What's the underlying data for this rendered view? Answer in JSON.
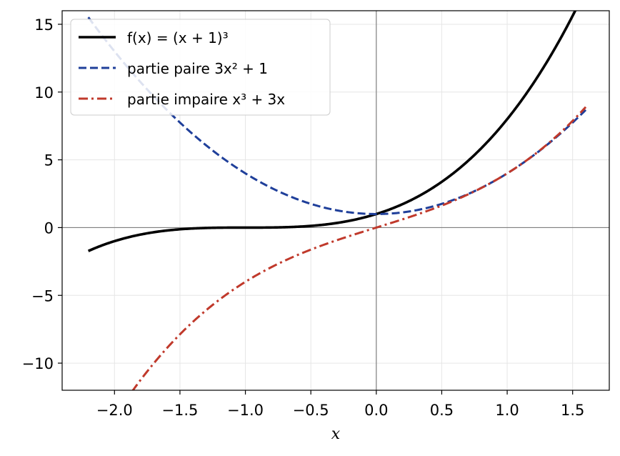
{
  "chart_data": {
    "type": "line",
    "title": "",
    "xlabel": "x",
    "ylabel": "",
    "xlim": [
      -2.4,
      1.78
    ],
    "ylim": [
      -12,
      16
    ],
    "xticks": [
      -2.0,
      -1.5,
      -1.0,
      -0.5,
      0.0,
      0.5,
      1.0,
      1.5
    ],
    "xtick_labels": [
      "−2.0",
      "−1.5",
      "−1.0",
      "−0.5",
      "0.0",
      "0.5",
      "1.0",
      "1.5"
    ],
    "yticks": [
      -10,
      -5,
      0,
      5,
      10,
      15
    ],
    "ytick_labels": [
      "−10",
      "−5",
      "0",
      "5",
      "10",
      "15"
    ],
    "grid": true,
    "legend_position": "top-left",
    "reference_lines": {
      "x": 0,
      "y": 0,
      "color": "#808080"
    },
    "x_domain": [
      -2.2,
      1.6
    ],
    "series": [
      {
        "name": "f(x) = (x + 1)³",
        "formula": "(x+1)^3",
        "color": "#000000",
        "style": "solid",
        "x": [
          -2.2,
          -2.0,
          -1.8,
          -1.6,
          -1.4,
          -1.2,
          -1.0,
          -0.8,
          -0.6,
          -0.4,
          -0.2,
          0.0,
          0.2,
          0.4,
          0.6,
          0.8,
          1.0,
          1.2,
          1.4,
          1.5
        ],
        "y": [
          -1.728,
          -1.0,
          -0.512,
          -0.216,
          -0.064,
          -0.008,
          0.0,
          0.008,
          0.064,
          0.216,
          0.512,
          1.0,
          1.728,
          2.744,
          4.096,
          5.832,
          8.0,
          10.648,
          13.824,
          15.625
        ]
      },
      {
        "name": "partie paire 3x² + 1",
        "formula": "3x^2+1",
        "color": "#1f3f9a",
        "style": "dashed",
        "x": [
          -2.2,
          -2.0,
          -1.8,
          -1.6,
          -1.4,
          -1.2,
          -1.0,
          -0.8,
          -0.6,
          -0.4,
          -0.2,
          0.0,
          0.2,
          0.4,
          0.6,
          0.8,
          1.0,
          1.2,
          1.4,
          1.6
        ],
        "y": [
          15.52,
          13.0,
          10.72,
          8.68,
          6.88,
          5.32,
          4.0,
          2.92,
          2.08,
          1.48,
          1.12,
          1.0,
          1.12,
          1.48,
          2.08,
          2.92,
          4.0,
          5.32,
          6.88,
          8.68
        ]
      },
      {
        "name": "partie impaire x³ + 3x",
        "formula": "x^3+3x",
        "color": "#c0392b",
        "style": "dashdot",
        "x": [
          -1.9,
          -1.8,
          -1.6,
          -1.4,
          -1.2,
          -1.0,
          -0.8,
          -0.6,
          -0.4,
          -0.2,
          0.0,
          0.2,
          0.4,
          0.6,
          0.8,
          1.0,
          1.2,
          1.4,
          1.6
        ],
        "y": [
          -12.559,
          -11.232,
          -8.896,
          -6.944,
          -5.328,
          -4.0,
          -2.912,
          -2.016,
          -1.264,
          -0.608,
          0.0,
          0.608,
          1.264,
          2.016,
          2.912,
          4.0,
          5.328,
          6.944,
          8.896
        ]
      }
    ]
  }
}
